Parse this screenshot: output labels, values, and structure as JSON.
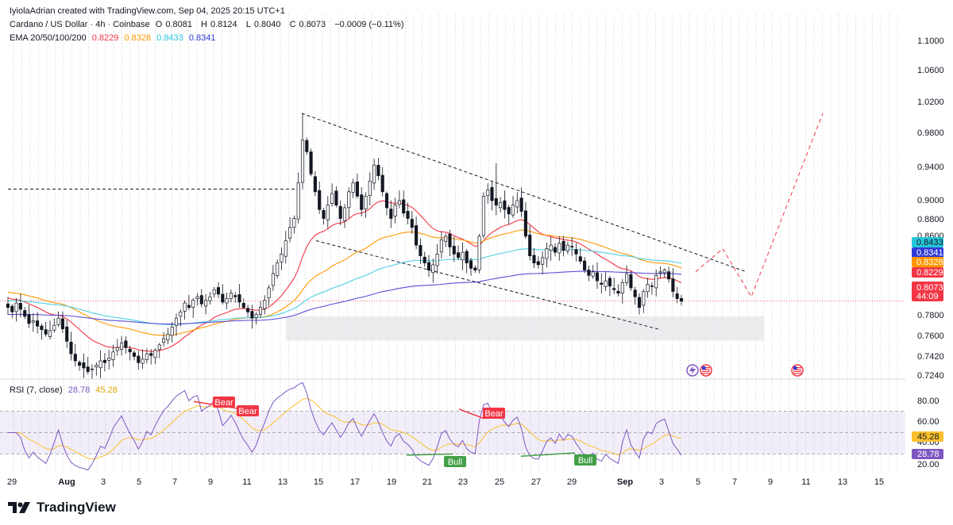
{
  "header": {
    "credit": "IyiolaAdrian created with TradingView.com, Sep 04, 2025 20:15 UTC+1",
    "symbol": "Cardano / US Dollar · 4h · Coinbase",
    "ohlc": {
      "open_label": "O",
      "open": "0.8081",
      "high_label": "H",
      "high": "0.8124",
      "low_label": "L",
      "low": "0.8040",
      "close_label": "C",
      "close": "0.8073",
      "change": "−0.0009 (−0.11%)"
    },
    "ema_label": "EMA 20/50/100/200",
    "ema_values": [
      "0.8229",
      "0.8328",
      "0.8433",
      "0.8341"
    ]
  },
  "rsi_header": {
    "label": "RSI (7, close)",
    "rsi": "28.78",
    "ma": "45.28"
  },
  "colors": {
    "up": "#ffffff",
    "down": "#131722",
    "ema20": "#f23645",
    "ema50": "#ff9800",
    "ema100": "#4dd0e1",
    "ema200": "#5b4fd8",
    "rsi": "#7e57c2",
    "rsi_ma": "#fbc02d",
    "bear": "#f23645",
    "bull": "#43a047",
    "price_badge": "#f23645"
  },
  "price_axis": {
    "ticks": [
      "1.1000",
      "1.0600",
      "1.0200",
      "0.9800",
      "0.9400",
      "0.9000",
      "0.8800",
      "0.8600",
      "0.7800",
      "0.7600",
      "0.7420",
      "0.7240"
    ],
    "badges": [
      {
        "value": "0.8433",
        "color": "#26c6da",
        "text_color": "#131722"
      },
      {
        "value": "0.8341",
        "color": "#2e3bd6",
        "text_color": "#ffffff"
      },
      {
        "value": "0.8328",
        "color": "#ff9800",
        "text_color": "#ffffff"
      },
      {
        "value": "0.8229",
        "color": "#f23645",
        "text_color": "#ffffff"
      }
    ],
    "last_price": "0.8073",
    "countdown": "44:09"
  },
  "rsi_axis": {
    "ticks": [
      "80.00",
      "60.00",
      "40.00",
      "20.00"
    ],
    "badges": [
      "45.28",
      "28.78"
    ]
  },
  "time_axis": {
    "labels": [
      "29",
      "Aug",
      "3",
      "5",
      "7",
      "9",
      "11",
      "13",
      "15",
      "17",
      "19",
      "21",
      "23",
      "25",
      "27",
      "29",
      "Sep",
      "3",
      "5",
      "7",
      "9",
      "11",
      "13",
      "15"
    ],
    "bold": [
      "Aug",
      "Sep"
    ]
  },
  "chart_data": {
    "type": "candlestick",
    "timeframe": "4h",
    "y_range": [
      0.724,
      1.1
    ],
    "candles_close": [
      0.8,
      0.795,
      0.805,
      0.798,
      0.79,
      0.782,
      0.785,
      0.779,
      0.775,
      0.77,
      0.774,
      0.78,
      0.788,
      0.776,
      0.762,
      0.748,
      0.74,
      0.735,
      0.732,
      0.728,
      0.731,
      0.735,
      0.74,
      0.738,
      0.743,
      0.75,
      0.755,
      0.76,
      0.755,
      0.75,
      0.745,
      0.738,
      0.742,
      0.748,
      0.746,
      0.752,
      0.758,
      0.765,
      0.77,
      0.778,
      0.788,
      0.795,
      0.805,
      0.8,
      0.808,
      0.812,
      0.804,
      0.808,
      0.812,
      0.82,
      0.815,
      0.806,
      0.81,
      0.816,
      0.812,
      0.806,
      0.8,
      0.795,
      0.788,
      0.792,
      0.8,
      0.808,
      0.822,
      0.838,
      0.85,
      0.86,
      0.875,
      0.89,
      0.9,
      0.94,
      0.988,
      0.975,
      0.95,
      0.93,
      0.91,
      0.9,
      0.915,
      0.928,
      0.915,
      0.9,
      0.912,
      0.93,
      0.94,
      0.925,
      0.91,
      0.925,
      0.942,
      0.96,
      0.948,
      0.93,
      0.912,
      0.9,
      0.915,
      0.92,
      0.906,
      0.9,
      0.89,
      0.87,
      0.858,
      0.85,
      0.842,
      0.848,
      0.86,
      0.876,
      0.88,
      0.868,
      0.86,
      0.856,
      0.862,
      0.85,
      0.844,
      0.842,
      0.88,
      0.925,
      0.932,
      0.92,
      0.915,
      0.918,
      0.91,
      0.905,
      0.915,
      0.92,
      0.908,
      0.88,
      0.858,
      0.85,
      0.848,
      0.856,
      0.866,
      0.87,
      0.862,
      0.872,
      0.864,
      0.87,
      0.868,
      0.86,
      0.852,
      0.842,
      0.836,
      0.84,
      0.83,
      0.826,
      0.83,
      0.824,
      0.82,
      0.816,
      0.828,
      0.838,
      0.822,
      0.812,
      0.8,
      0.818,
      0.826,
      0.824,
      0.836,
      0.84,
      0.842,
      0.832,
      0.818,
      0.81,
      0.807
    ],
    "ema": [
      {
        "name": "EMA 20",
        "last": 0.8229
      },
      {
        "name": "EMA 50",
        "last": 0.8328
      },
      {
        "name": "EMA 100",
        "last": 0.8433
      },
      {
        "name": "EMA 200",
        "last": 0.8341
      }
    ],
    "channel_upper": [
      {
        "date": "Aug 14",
        "price": 1.018
      },
      {
        "date": "Sep 5",
        "price": 0.84
      }
    ],
    "channel_lower": [
      {
        "date": "Aug 14",
        "price": 0.875
      },
      {
        "date": "Sep 3",
        "price": 0.775
      }
    ],
    "support_zone": [
      0.763,
      0.79
    ],
    "resistance_line": 0.933,
    "projection": [
      0.84,
      0.866,
      0.812,
      1.018
    ],
    "current_price_line": 0.8073,
    "rsi": {
      "period": 7,
      "last": 28.78,
      "ma_last": 45.28,
      "overbought": 70,
      "oversold": 30,
      "midline": 50
    },
    "divergences": [
      {
        "type": "Bear",
        "label": "Bear"
      },
      {
        "type": "Bear",
        "label": "Bear"
      },
      {
        "type": "Bull",
        "label": "Bull"
      },
      {
        "type": "Bear",
        "label": "Bear"
      },
      {
        "type": "Bull",
        "label": "Bull"
      }
    ]
  },
  "brand": {
    "name": "TradingView"
  }
}
